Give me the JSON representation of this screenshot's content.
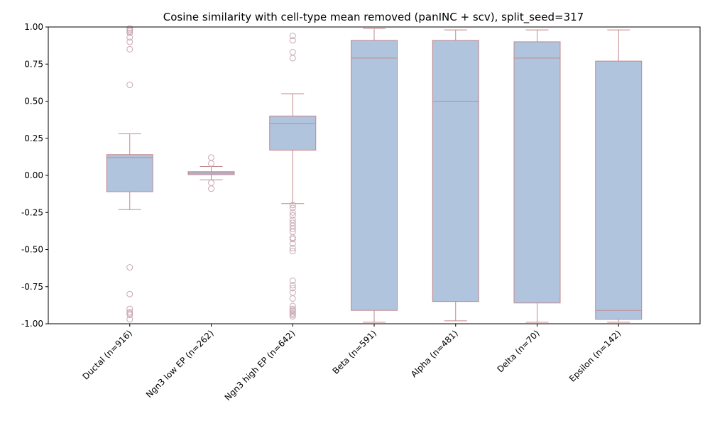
{
  "chart_data": {
    "type": "boxplot",
    "title": "Cosine similarity with cell-type mean removed (panINC + scv), split_seed=317",
    "xlabel": "",
    "ylabel": "",
    "ylim": [
      -1.0,
      1.0
    ],
    "yticks": [
      "-1.00",
      "-0.75",
      "-0.50",
      "-0.25",
      "0.00",
      "0.25",
      "0.50",
      "0.75",
      "1.00"
    ],
    "grid": false,
    "colors": {
      "box_fill": "#b0c4de",
      "box_edge": "#c4878b",
      "flier": "#c9a8b4"
    },
    "categories": [
      "Ductal (n=916)",
      "Ngn3 low EP (n=262)",
      "Ngn3 high EP (n=642)",
      "Beta (n=591)",
      "Alpha (n=481)",
      "Delta (n=70)",
      "Epsilon (n=142)"
    ],
    "boxes": [
      {
        "whisker_low": -0.23,
        "q1": -0.11,
        "median": 0.12,
        "q3": 0.14,
        "whisker_high": 0.28,
        "fliers": [
          0.99,
          0.98,
          0.97,
          0.96,
          0.93,
          0.9,
          0.85,
          0.61,
          -0.62,
          -0.8,
          -0.9,
          -0.92,
          -0.93,
          -0.94,
          -0.97
        ]
      },
      {
        "whisker_low": -0.03,
        "q1": 0.005,
        "median": 0.015,
        "q3": 0.025,
        "whisker_high": 0.06,
        "fliers": [
          0.12,
          0.08,
          -0.05,
          -0.09
        ]
      },
      {
        "whisker_low": -0.19,
        "q1": 0.17,
        "median": 0.35,
        "q3": 0.4,
        "whisker_high": 0.55,
        "fliers": [
          0.94,
          0.91,
          0.83,
          0.79,
          -0.2,
          -0.22,
          -0.25,
          -0.27,
          -0.3,
          -0.32,
          -0.34,
          -0.36,
          -0.38,
          -0.42,
          -0.43,
          -0.46,
          -0.49,
          -0.51,
          -0.71,
          -0.74,
          -0.76,
          -0.79,
          -0.83,
          -0.88,
          -0.9,
          -0.91,
          -0.92,
          -0.93,
          -0.94,
          -0.95
        ]
      },
      {
        "whisker_low": -0.99,
        "q1": -0.91,
        "median": 0.79,
        "q3": 0.91,
        "whisker_high": 0.99,
        "fliers": []
      },
      {
        "whisker_low": -0.98,
        "q1": -0.85,
        "median": 0.5,
        "q3": 0.91,
        "whisker_high": 0.98,
        "fliers": []
      },
      {
        "whisker_low": -0.99,
        "q1": -0.86,
        "median": 0.79,
        "q3": 0.9,
        "whisker_high": 0.98,
        "fliers": []
      },
      {
        "whisker_low": -0.99,
        "q1": -0.97,
        "median": -0.91,
        "q3": 0.77,
        "whisker_high": 0.98,
        "fliers": []
      }
    ]
  }
}
